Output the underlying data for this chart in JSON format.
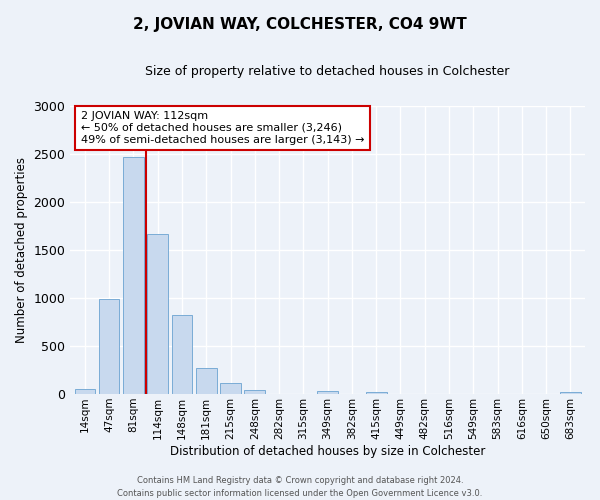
{
  "title": "2, JOVIAN WAY, COLCHESTER, CO4 9WT",
  "subtitle": "Size of property relative to detached houses in Colchester",
  "xlabel": "Distribution of detached houses by size in Colchester",
  "ylabel": "Number of detached properties",
  "bar_labels": [
    "14sqm",
    "47sqm",
    "81sqm",
    "114sqm",
    "148sqm",
    "181sqm",
    "215sqm",
    "248sqm",
    "282sqm",
    "315sqm",
    "349sqm",
    "382sqm",
    "415sqm",
    "449sqm",
    "482sqm",
    "516sqm",
    "549sqm",
    "583sqm",
    "616sqm",
    "650sqm",
    "683sqm"
  ],
  "bar_values": [
    50,
    990,
    2460,
    1660,
    820,
    270,
    120,
    40,
    5,
    5,
    30,
    5,
    20,
    5,
    5,
    5,
    5,
    5,
    5,
    5,
    20
  ],
  "bar_color": "#c8d9ee",
  "bar_edge_color": "#7aacd6",
  "vline_color": "#cc0000",
  "ylim": [
    0,
    3000
  ],
  "yticks": [
    0,
    500,
    1000,
    1500,
    2000,
    2500,
    3000
  ],
  "annotation_line1": "2 JOVIAN WAY: 112sqm",
  "annotation_line2": "← 50% of detached houses are smaller (3,246)",
  "annotation_line3": "49% of semi-detached houses are larger (3,143) →",
  "annotation_box_color": "#ffffff",
  "annotation_box_edge": "#cc0000",
  "footer_line1": "Contains HM Land Registry data © Crown copyright and database right 2024.",
  "footer_line2": "Contains public sector information licensed under the Open Government Licence v3.0.",
  "bg_color": "#edf2f9",
  "plot_bg_color": "#edf2f9",
  "grid_color": "#ffffff",
  "title_fontsize": 11,
  "subtitle_fontsize": 9
}
